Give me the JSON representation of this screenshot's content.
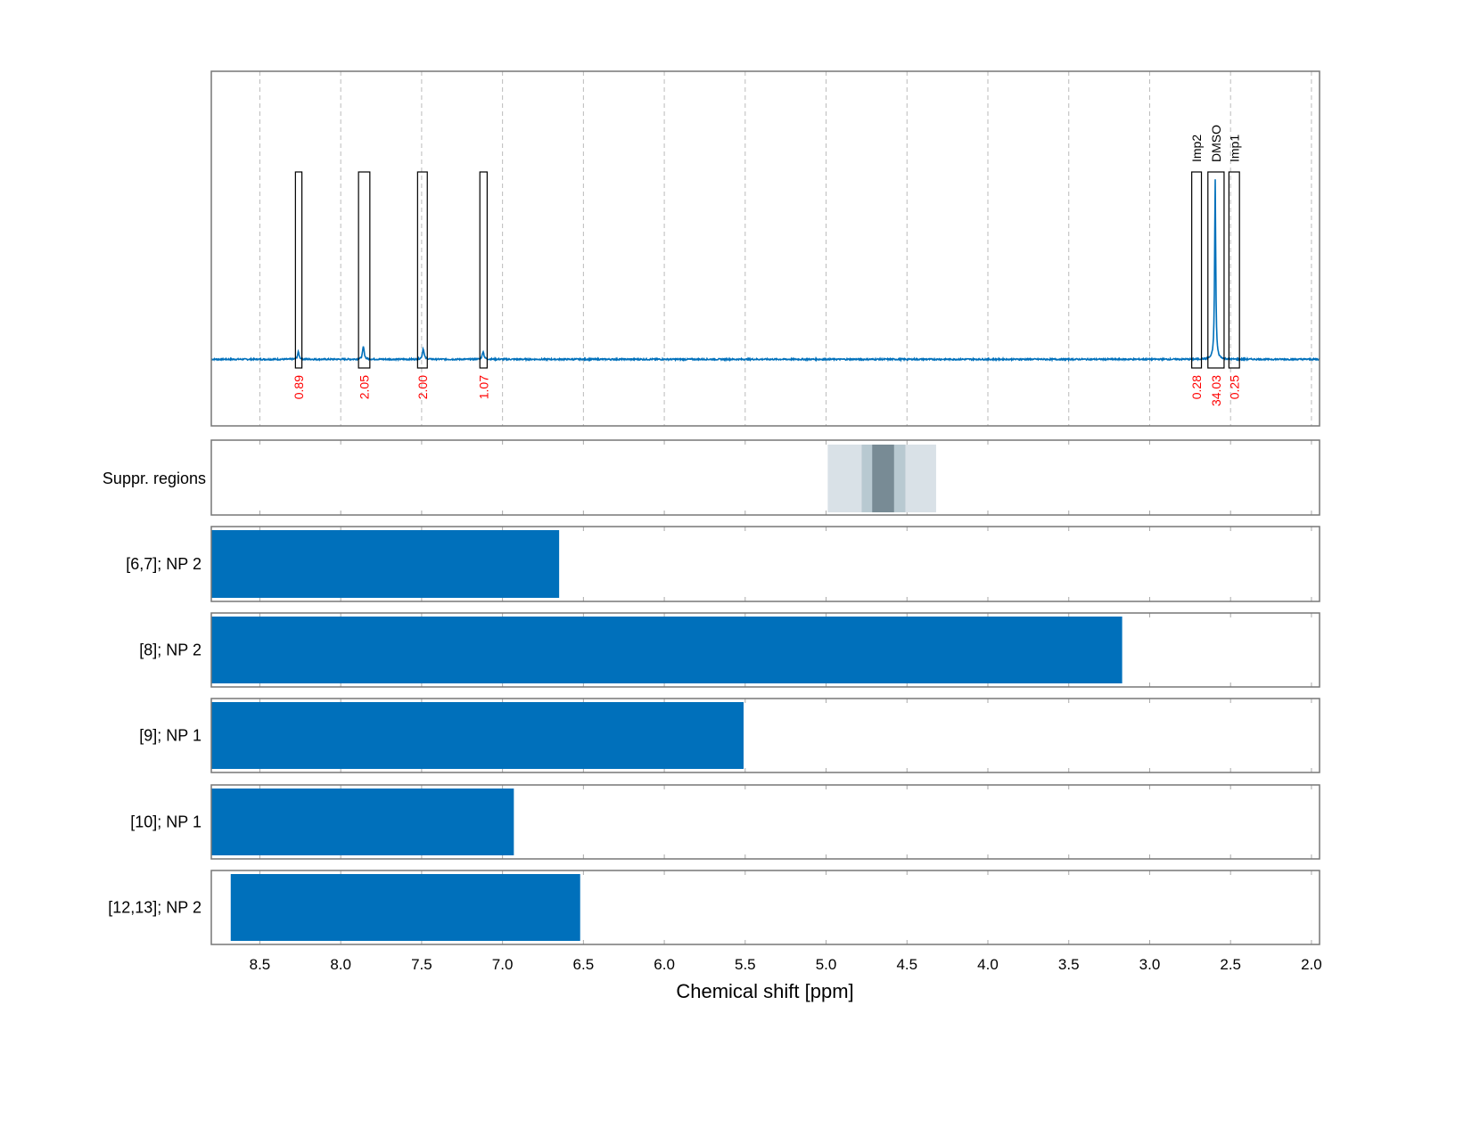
{
  "chart_data": {
    "type": "line",
    "xlabel": "Chemical shift [ppm]",
    "xlim": [
      8.8,
      1.95
    ],
    "x_reversed": true,
    "x_ticks": [
      "8.5",
      "8.0",
      "7.5",
      "7.0",
      "6.5",
      "6.0",
      "5.5",
      "5.0",
      "4.5",
      "4.0",
      "3.5",
      "3.0",
      "2.5",
      "2.0"
    ],
    "grid": "vertical dashed",
    "colors": {
      "spectrum": "#0070bb",
      "bars": "#0070bb",
      "integral_text": "#ff0000",
      "suppr_light": "#d9e1e7",
      "suppr_mid": "#b8c9d1",
      "suppr_dark": "#788b95"
    },
    "spectrum": {
      "baseline": 0,
      "ylim": [
        -0.37,
        1.6
      ],
      "peaks": [
        {
          "ppm": 8.262,
          "height": 0.04
        },
        {
          "ppm": 7.86,
          "height": 0.07
        },
        {
          "ppm": 7.49,
          "height": 0.06
        },
        {
          "ppm": 7.12,
          "height": 0.045
        },
        {
          "ppm": 2.595,
          "height": 1.0
        }
      ]
    },
    "integrals": [
      {
        "from": 8.28,
        "to": 8.24,
        "value": "0.89",
        "label": ""
      },
      {
        "from": 7.89,
        "to": 7.82,
        "value": "2.05",
        "label": ""
      },
      {
        "from": 7.525,
        "to": 7.465,
        "value": "2.00",
        "label": ""
      },
      {
        "from": 7.14,
        "to": 7.095,
        "value": "1.07",
        "label": ""
      },
      {
        "from": 2.74,
        "to": 2.68,
        "value": "0.28",
        "label": "Imp2"
      },
      {
        "from": 2.64,
        "to": 2.54,
        "value": "34.03",
        "label": "DMSO"
      },
      {
        "from": 2.51,
        "to": 2.445,
        "value": "0.25",
        "label": "Imp1"
      }
    ],
    "suppression": {
      "label": "Suppr. regions",
      "regions": [
        {
          "from": 4.99,
          "to": 4.32,
          "level": "light"
        },
        {
          "from": 4.78,
          "to": 4.51,
          "level": "mid"
        },
        {
          "from": 4.715,
          "to": 4.58,
          "level": "dark"
        }
      ]
    },
    "bars": [
      {
        "label": "[6,7]; NP 2",
        "from": 8.8,
        "to": 6.65
      },
      {
        "label": "[8]; NP 2",
        "from": 8.8,
        "to": 3.17
      },
      {
        "label": "[9]; NP 1",
        "from": 8.8,
        "to": 5.51
      },
      {
        "label": "[10]; NP 1",
        "from": 8.8,
        "to": 6.93
      },
      {
        "label": "[12,13]; NP 2",
        "from": 8.68,
        "to": 6.52
      }
    ]
  }
}
